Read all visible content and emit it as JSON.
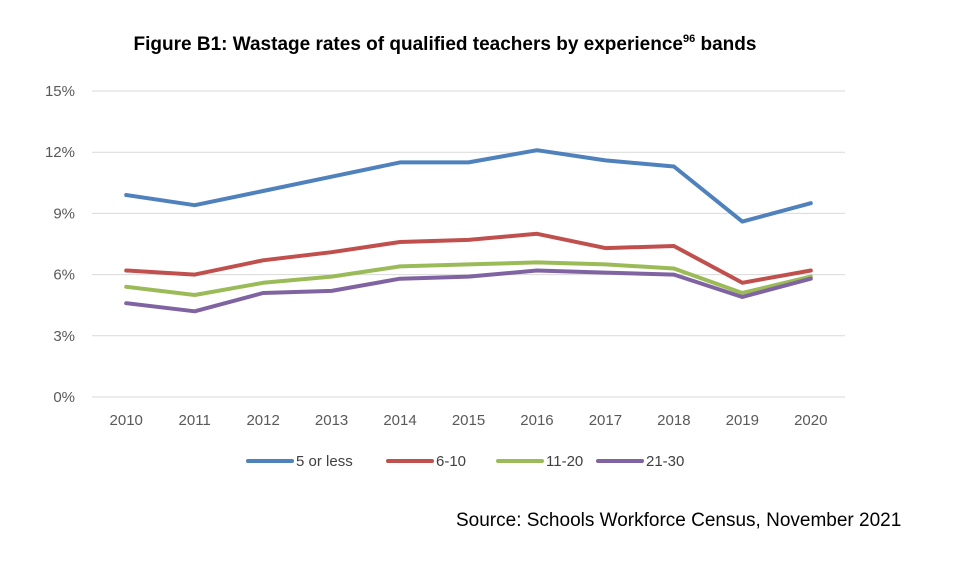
{
  "title": {
    "main": "Figure B1: Wastage rates of qualified teachers by experience",
    "sup": "96",
    "tail": " bands"
  },
  "source": "Source: Schools Workforce Census, November 2021",
  "chart_data": {
    "type": "line",
    "x": [
      "2010",
      "2011",
      "2012",
      "2013",
      "2014",
      "2015",
      "2016",
      "2017",
      "2018",
      "2019",
      "2020"
    ],
    "ylim": [
      0,
      15
    ],
    "yticks": [
      0,
      3,
      6,
      9,
      12,
      15
    ],
    "ytick_labels": [
      "0%",
      "3%",
      "6%",
      "9%",
      "12%",
      "15%"
    ],
    "grid": true,
    "legend_position": "bottom",
    "series": [
      {
        "name": "5 or less",
        "color": "#4F81BD",
        "values": [
          9.9,
          9.4,
          10.1,
          10.8,
          11.5,
          11.5,
          12.1,
          11.6,
          11.3,
          8.6,
          9.5
        ]
      },
      {
        "name": "6-10",
        "color": "#C0504D",
        "values": [
          6.2,
          6.0,
          6.7,
          7.1,
          7.6,
          7.7,
          8.0,
          7.3,
          7.4,
          5.6,
          6.2
        ]
      },
      {
        "name": "11-20",
        "color": "#9BBB59",
        "values": [
          5.4,
          5.0,
          5.6,
          5.9,
          6.4,
          6.5,
          6.6,
          6.5,
          6.3,
          5.1,
          5.9
        ]
      },
      {
        "name": "21-30",
        "color": "#8064A2",
        "values": [
          4.6,
          4.2,
          5.1,
          5.2,
          5.8,
          5.9,
          6.2,
          6.1,
          6.0,
          4.9,
          5.8
        ]
      }
    ]
  }
}
